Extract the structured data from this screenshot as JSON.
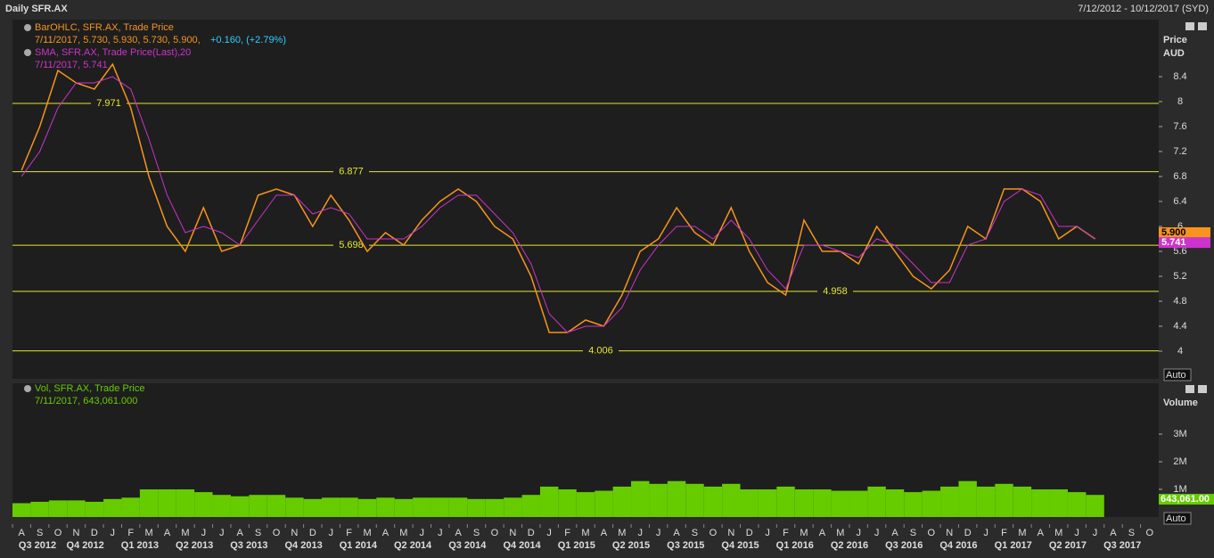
{
  "header": {
    "title": "Daily SFR.AX",
    "range": "7/12/2012 - 10/12/2017 (SYD)"
  },
  "chart_data": [
    {
      "type": "line",
      "axis_title": [
        "Price",
        "AUD"
      ],
      "auto": "Auto",
      "legend_details": [
        {
          "text": "7/11/2017, 5.730, 5.930, 5.730, 5.900,",
          "extra": "+0.160, (+2.79%)"
        },
        {
          "text": "7/11/2017, 5.741",
          "extra": "20"
        }
      ],
      "categories": [
        "A",
        "S",
        "O",
        "N",
        "D",
        "J",
        "F",
        "M",
        "A",
        "M",
        "J",
        "J",
        "A",
        "S",
        "O",
        "N",
        "D",
        "J",
        "F",
        "M",
        "A",
        "M",
        "J",
        "J",
        "A",
        "S",
        "O",
        "N",
        "D",
        "J",
        "F",
        "M",
        "A",
        "M",
        "J",
        "J",
        "A",
        "S",
        "O",
        "N",
        "D",
        "J",
        "F",
        "M",
        "A",
        "M",
        "J",
        "J",
        "A",
        "S",
        "O",
        "N",
        "D",
        "J",
        "F",
        "M",
        "A",
        "M",
        "J",
        "J",
        "A",
        "S",
        "O"
      ],
      "quarters": [
        "Q3 2012",
        "Q4 2012",
        "Q1 2013",
        "Q2 2013",
        "Q3 2013",
        "Q4 2013",
        "Q1 2014",
        "Q2 2014",
        "Q3 2014",
        "Q4 2014",
        "Q1 2015",
        "Q2 2015",
        "Q3 2015",
        "Q4 2015",
        "Q1 2016",
        "Q2 2016",
        "Q3 2016",
        "Q4 2016",
        "Q1 2017",
        "Q2 2017",
        "Q3 2017"
      ],
      "series": [
        {
          "name": "BarOHLC, SFR.AX, Trade Price",
          "color": "#f7941d",
          "values": [
            6.9,
            7.6,
            8.5,
            8.3,
            8.2,
            8.6,
            7.9,
            6.8,
            6.0,
            5.6,
            6.3,
            5.6,
            5.7,
            6.5,
            6.6,
            6.5,
            6.0,
            6.5,
            6.1,
            5.6,
            5.9,
            5.7,
            6.1,
            6.4,
            6.6,
            6.4,
            6.0,
            5.8,
            5.2,
            4.3,
            4.3,
            4.5,
            4.4,
            4.9,
            5.6,
            5.8,
            6.3,
            5.9,
            5.7,
            6.3,
            5.6,
            5.1,
            4.9,
            6.1,
            5.6,
            5.6,
            5.4,
            6.0,
            5.6,
            5.2,
            5.0,
            5.3,
            6.0,
            5.8,
            6.6,
            6.6,
            6.4,
            5.8,
            6.0,
            5.8,
            null,
            null,
            null
          ]
        },
        {
          "name": "SMA, SFR.AX, Trade Price(Last),",
          "color": "#cc33cc",
          "values": [
            6.8,
            7.2,
            7.9,
            8.3,
            8.3,
            8.4,
            8.2,
            7.4,
            6.5,
            5.9,
            6.0,
            5.9,
            5.7,
            6.1,
            6.5,
            6.5,
            6.2,
            6.3,
            6.2,
            5.8,
            5.8,
            5.8,
            6.0,
            6.3,
            6.5,
            6.5,
            6.2,
            5.9,
            5.4,
            4.6,
            4.3,
            4.4,
            4.4,
            4.7,
            5.3,
            5.7,
            6.0,
            6.0,
            5.8,
            6.1,
            5.8,
            5.3,
            5.0,
            5.7,
            5.7,
            5.6,
            5.5,
            5.8,
            5.7,
            5.4,
            5.1,
            5.1,
            5.7,
            5.8,
            6.4,
            6.6,
            6.5,
            6.0,
            6.0,
            5.8,
            null,
            null,
            null
          ]
        }
      ],
      "levels": [
        7.971,
        6.877,
        5.698,
        4.958,
        4.006
      ],
      "last_labels": [
        {
          "value": 5.9,
          "label": "5.900",
          "color": "#f7941d"
        },
        {
          "value": 5.741,
          "label": "5.741",
          "color": "#cc33cc"
        }
      ],
      "ylim": [
        3.557,
        9.314
      ],
      "yticks": [
        4,
        4.4,
        4.8,
        5.2,
        5.6,
        6,
        6.4,
        6.8,
        7.2,
        7.6,
        8,
        8.4
      ]
    },
    {
      "type": "bar",
      "axis_title": "Volume",
      "auto": "Auto",
      "legend_name": "Vol, SFR.AX, Trade Price",
      "legend_detail": "7/11/2017, 643,061.000",
      "color": "#66cc00",
      "values": [
        500000,
        550000,
        600000,
        600000,
        550000,
        650000,
        700000,
        1000000,
        1000000,
        1000000,
        900000,
        800000,
        750000,
        800000,
        800000,
        700000,
        650000,
        700000,
        700000,
        650000,
        700000,
        650000,
        700000,
        700000,
        700000,
        650000,
        650000,
        700000,
        800000,
        1100000,
        1000000,
        900000,
        950000,
        1100000,
        1300000,
        1200000,
        1300000,
        1200000,
        1100000,
        1200000,
        1000000,
        1000000,
        1100000,
        1000000,
        1000000,
        950000,
        950000,
        1100000,
        1000000,
        900000,
        950000,
        1100000,
        1300000,
        1100000,
        1200000,
        1100000,
        1000000,
        1000000,
        900000,
        800000,
        null,
        null,
        null
      ],
      "last_label": {
        "value": 643061,
        "label": "643,061.00"
      },
      "ylim": [
        0,
        4840000
      ],
      "yticks": [
        {
          "value": 1000000,
          "label": "1M"
        },
        {
          "value": 2000000,
          "label": "2M"
        },
        {
          "value": 3000000,
          "label": "3M"
        }
      ]
    }
  ]
}
